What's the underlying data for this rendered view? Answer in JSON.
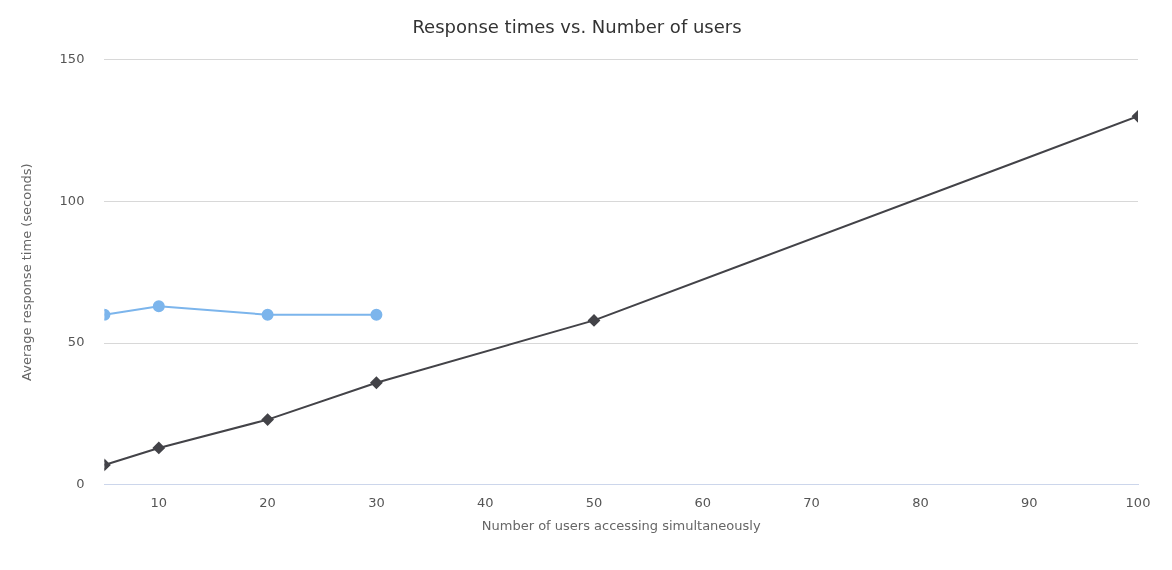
{
  "chart_data": {
    "type": "line",
    "title": "Response times vs. Number of users",
    "xlabel": "Number of users accessing simultaneously",
    "ylabel": "Average response time (seconds)",
    "xlim": [
      5,
      100
    ],
    "xticks": [
      10,
      20,
      30,
      40,
      50,
      60,
      70,
      80,
      90,
      100
    ],
    "ylim": [
      0,
      150
    ],
    "yticks": [
      0,
      50,
      100,
      150
    ],
    "grid": "y",
    "legend": false,
    "line_style": "solid",
    "series": [
      {
        "color": "#7cb5ec",
        "marker": "circle",
        "x": [
          5,
          10,
          20,
          30
        ],
        "values": [
          60,
          63,
          60,
          60
        ]
      },
      {
        "color": "#434348",
        "marker": "diamond",
        "x": [
          5,
          10,
          20,
          30,
          50,
          100
        ],
        "values": [
          7,
          13,
          23,
          36,
          58,
          130
        ]
      }
    ]
  }
}
